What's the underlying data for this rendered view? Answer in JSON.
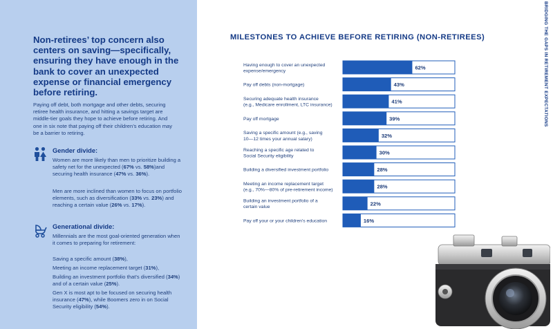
{
  "left": {
    "headline": "Non-retirees’ top concern also centers on saving—specifically, ensuring they have enough in the bank to cover an unexpected expense or financial emergency before retiring.",
    "intro": "Paying off debt, both mortgage and other debts, securing retiree health insurance, and hitting a savings target are middle-tier goals they hope to achieve before retiring. And one in six note that paying off their children’s education may be a barrier to retiring.",
    "gender": {
      "icon": "people-icon",
      "title": "Gender divide:",
      "p1": [
        "Women are more likely than men to prioritize building a safety net for the unexpected (",
        "67%",
        " vs. ",
        "58%",
        ")and securing health insurance (",
        "47%",
        " vs. ",
        "36%",
        ")."
      ],
      "p2": [
        "Men are more inclined than women to focus on portfolio elements, such as diversification (",
        "33%",
        " vs. ",
        "23%",
        ") and reaching a certain value (",
        "26%",
        " vs. ",
        "17%",
        ")."
      ]
    },
    "generational": {
      "icon": "stroller-icon",
      "title": "Generational divide:",
      "p1": "Millennials are the most goal-oriented generation when it comes to preparing for retirement:",
      "p2": [
        "Saving a specific amount (",
        "38%",
        "),"
      ],
      "p3": [
        "Meeting an income replacement target (",
        "31%",
        "),"
      ],
      "p4": [
        "Building an investment portfolio that’s diversified (",
        "34%",
        ") and of a certain value (",
        "25%",
        ")."
      ],
      "p5": [
        "Gen X is most apt to be focused on securing health insurance (",
        "47%",
        "), while Boomers zero in on Social Security eligibility (",
        "54%",
        ")."
      ]
    }
  },
  "side_label": "BRIDGING THE GAPS IN RETIREMENT EXPECTATIONS",
  "chart_data": {
    "type": "bar",
    "orientation": "horizontal",
    "title": "MILESTONES TO ACHIEVE BEFORE RETIRING (NON-RETIREES)",
    "categories": [
      [
        "Having enough to cover an unexpected",
        "expense/emergency"
      ],
      [
        "Pay off debts (non-mortgage)"
      ],
      [
        "Securing adequate health insurance",
        "(e.g., Medicare enrollment, LTC insurance)"
      ],
      [
        "Pay off mortgage"
      ],
      [
        "Saving a specific amount (e.g., saving",
        "10—12 times your annual salary)"
      ],
      [
        "Reaching a specific age related to",
        "Social Security eligibility"
      ],
      [
        "Building a diversified investment portfolio"
      ],
      [
        "Meeting an income replacement target",
        "(e.g., 70%—80% of pre-retirement income)"
      ],
      [
        "Building an investment portfolio of a",
        "certain value"
      ],
      [
        "Pay off your or your children’s education"
      ]
    ],
    "values": [
      62,
      43,
      41,
      39,
      32,
      30,
      28,
      28,
      22,
      16
    ],
    "value_labels": [
      "62%",
      "43%",
      "41%",
      "39%",
      "32%",
      "30%",
      "28%",
      "28%",
      "22%",
      "16%"
    ],
    "xlim": [
      0,
      100
    ],
    "colors": {
      "bar": "#1f5cb8",
      "outline": "#1f5cb8",
      "label_text": "#1f3f7c"
    }
  }
}
